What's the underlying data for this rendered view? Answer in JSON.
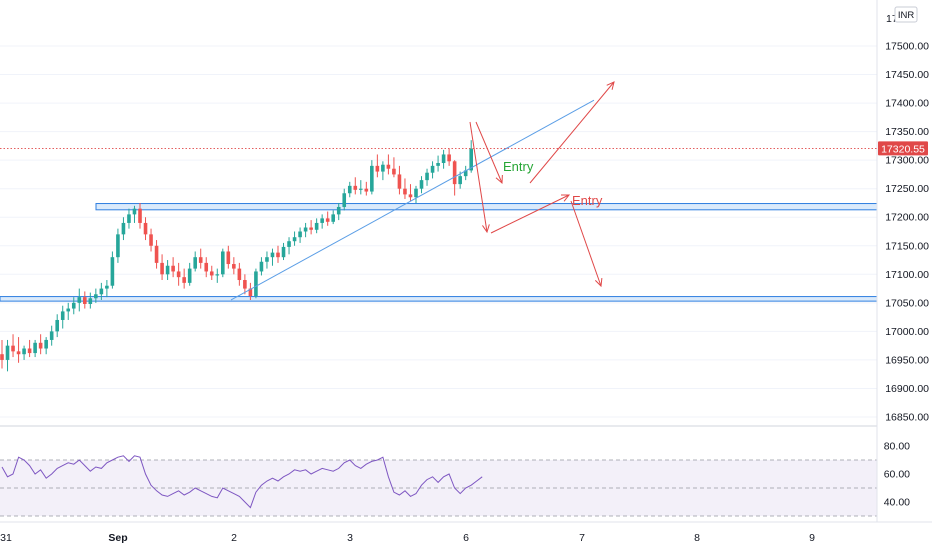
{
  "chart_data": {
    "type": "candlestick",
    "currency": "INR",
    "last_price": "17320.55",
    "price_axis": {
      "ticks": [
        "17500.00",
        "17450.00",
        "17400.00",
        "17350.00",
        "17300.00",
        "17250.00",
        "17200.00",
        "17150.00",
        "17100.00",
        "17050.00",
        "17000.00",
        "16950.00",
        "16900.00",
        "16850.00"
      ],
      "partial_top_label": "17"
    },
    "time_axis": {
      "ticks": [
        "31",
        "Sep",
        "2",
        "3",
        "6",
        "7",
        "8",
        "9"
      ]
    },
    "candles": [
      [
        16960,
        16985,
        16935,
        16950
      ],
      [
        16950,
        16985,
        16930,
        16975
      ],
      [
        16975,
        16995,
        16955,
        16965
      ],
      [
        16965,
        16990,
        16945,
        16960
      ],
      [
        16960,
        16975,
        16950,
        16970
      ],
      [
        16970,
        16985,
        16955,
        16962
      ],
      [
        16962,
        16985,
        16955,
        16980
      ],
      [
        16980,
        16995,
        16960,
        16970
      ],
      [
        16970,
        16990,
        16960,
        16985
      ],
      [
        16985,
        17010,
        16975,
        17000
      ],
      [
        17000,
        17030,
        16990,
        17020
      ],
      [
        17020,
        17045,
        17005,
        17035
      ],
      [
        17035,
        17050,
        17020,
        17040
      ],
      [
        17040,
        17060,
        17030,
        17050
      ],
      [
        17050,
        17075,
        17035,
        17060
      ],
      [
        17060,
        17070,
        17040,
        17048
      ],
      [
        17048,
        17068,
        17040,
        17058
      ],
      [
        17058,
        17075,
        17050,
        17065
      ],
      [
        17065,
        17085,
        17055,
        17075
      ],
      [
        17075,
        17090,
        17060,
        17080
      ],
      [
        17080,
        17140,
        17075,
        17130
      ],
      [
        17130,
        17180,
        17120,
        17170
      ],
      [
        17170,
        17200,
        17160,
        17190
      ],
      [
        17190,
        17215,
        17180,
        17205
      ],
      [
        17205,
        17220,
        17190,
        17215
      ],
      [
        17215,
        17225,
        17180,
        17190
      ],
      [
        17190,
        17200,
        17160,
        17170
      ],
      [
        17170,
        17180,
        17140,
        17150
      ],
      [
        17150,
        17160,
        17110,
        17120
      ],
      [
        17120,
        17135,
        17090,
        17100
      ],
      [
        17100,
        17125,
        17090,
        17115
      ],
      [
        17115,
        17130,
        17095,
        17105
      ],
      [
        17105,
        17120,
        17080,
        17095
      ],
      [
        17095,
        17110,
        17075,
        17085
      ],
      [
        17085,
        17120,
        17080,
        17110
      ],
      [
        17110,
        17140,
        17105,
        17130
      ],
      [
        17130,
        17145,
        17110,
        17120
      ],
      [
        17120,
        17130,
        17095,
        17105
      ],
      [
        17105,
        17115,
        17090,
        17098
      ],
      [
        17098,
        17110,
        17085,
        17100
      ],
      [
        17100,
        17145,
        17095,
        17140
      ],
      [
        17140,
        17150,
        17110,
        17118
      ],
      [
        17118,
        17130,
        17100,
        17110
      ],
      [
        17110,
        17120,
        17080,
        17090
      ],
      [
        17090,
        17100,
        17065,
        17075
      ],
      [
        17075,
        17085,
        17055,
        17062
      ],
      [
        17062,
        17110,
        17058,
        17105
      ],
      [
        17105,
        17130,
        17098,
        17122
      ],
      [
        17122,
        17140,
        17110,
        17130
      ],
      [
        17130,
        17145,
        17115,
        17138
      ],
      [
        17138,
        17150,
        17120,
        17130
      ],
      [
        17130,
        17155,
        17125,
        17148
      ],
      [
        17148,
        17165,
        17135,
        17158
      ],
      [
        17158,
        17175,
        17150,
        17165
      ],
      [
        17165,
        17182,
        17155,
        17175
      ],
      [
        17175,
        17190,
        17165,
        17182
      ],
      [
        17182,
        17195,
        17170,
        17178
      ],
      [
        17178,
        17198,
        17172,
        17190
      ],
      [
        17190,
        17205,
        17180,
        17198
      ],
      [
        17198,
        17210,
        17185,
        17192
      ],
      [
        17192,
        17212,
        17188,
        17205
      ],
      [
        17205,
        17225,
        17195,
        17218
      ],
      [
        17218,
        17250,
        17212,
        17242
      ],
      [
        17242,
        17262,
        17235,
        17255
      ],
      [
        17255,
        17270,
        17240,
        17248
      ],
      [
        17248,
        17265,
        17240,
        17250
      ],
      [
        17250,
        17262,
        17238,
        17245
      ],
      [
        17245,
        17300,
        17240,
        17290
      ],
      [
        17290,
        17310,
        17270,
        17280
      ],
      [
        17280,
        17298,
        17265,
        17292
      ],
      [
        17292,
        17310,
        17275,
        17285
      ],
      [
        17285,
        17305,
        17270,
        17275
      ],
      [
        17275,
        17290,
        17240,
        17250
      ],
      [
        17250,
        17268,
        17232,
        17240
      ],
      [
        17240,
        17258,
        17228,
        17235
      ],
      [
        17235,
        17255,
        17225,
        17250
      ],
      [
        17250,
        17272,
        17242,
        17265
      ],
      [
        17265,
        17285,
        17255,
        17278
      ],
      [
        17278,
        17298,
        17268,
        17290
      ],
      [
        17290,
        17308,
        17280,
        17295
      ],
      [
        17295,
        17318,
        17285,
        17310
      ],
      [
        17310,
        17320,
        17290,
        17298
      ],
      [
        17298,
        17300,
        17238,
        17258
      ],
      [
        17258,
        17280,
        17250,
        17272
      ],
      [
        17272,
        17290,
        17265,
        17282
      ],
      [
        17282,
        17335,
        17278,
        17320
      ]
    ],
    "drawings": {
      "resistance_zone": [
        17213,
        17224
      ],
      "support_zone": [
        17053,
        17061
      ],
      "trendline_from": 17055,
      "trendline_to": 17405
    },
    "annotations": [
      "Entry",
      "Entry"
    ],
    "rsi": {
      "ticks": [
        "80.00",
        "60.00",
        "40.00"
      ],
      "band": [
        30,
        70
      ],
      "values": [
        65,
        58,
        60,
        72,
        70,
        66,
        60,
        63,
        57,
        60,
        64,
        66,
        68,
        67,
        70,
        66,
        62,
        65,
        64,
        68,
        70,
        72,
        73,
        69,
        73,
        72,
        60,
        52,
        48,
        45,
        44,
        46,
        48,
        45,
        47,
        50,
        48,
        46,
        44,
        43,
        50,
        48,
        46,
        44,
        40,
        36,
        47,
        52,
        55,
        57,
        55,
        58,
        60,
        63,
        62,
        63,
        60,
        62,
        64,
        63,
        62,
        64,
        68,
        70,
        66,
        64,
        67,
        69,
        70,
        72,
        58,
        47,
        45,
        48,
        44,
        46,
        52,
        56,
        58,
        54,
        58,
        60,
        50,
        46,
        50,
        52,
        55,
        58
      ]
    }
  }
}
